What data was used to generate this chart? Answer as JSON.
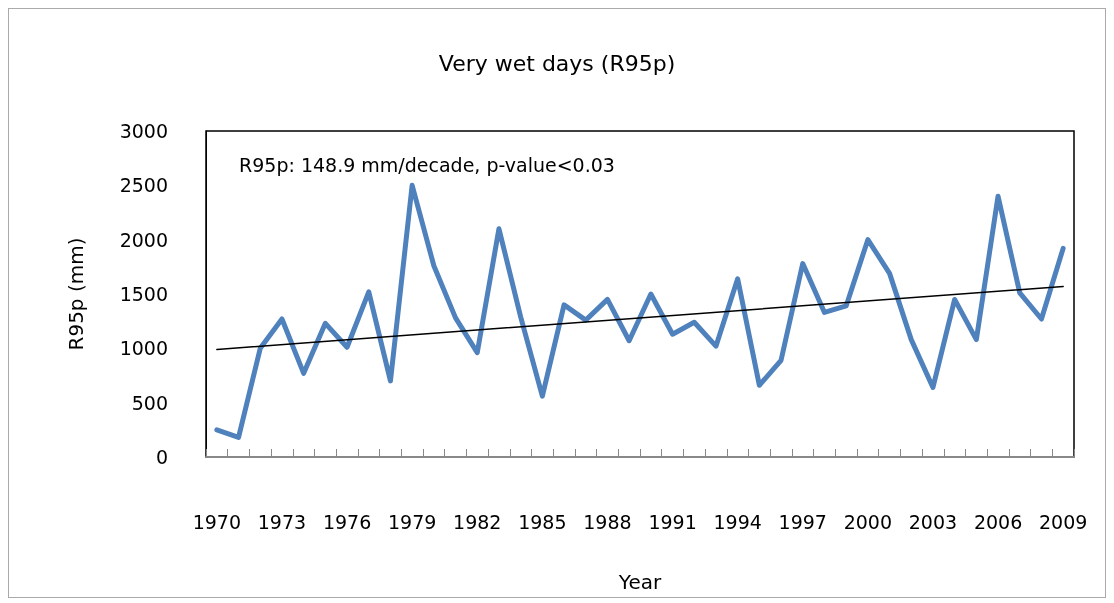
{
  "chart_data": {
    "type": "line",
    "title": "Very wet days (R95p)",
    "xlabel": "Year",
    "ylabel": "R95p (mm)",
    "categories": [
      "1970",
      null,
      null,
      "1973",
      null,
      null,
      "1976",
      null,
      null,
      "1979",
      null,
      null,
      "1982",
      null,
      null,
      "1985",
      null,
      null,
      "1988",
      null,
      null,
      "1991",
      null,
      null,
      "1994",
      null,
      null,
      "1997",
      null,
      null,
      "2000",
      null,
      null,
      "2003",
      null,
      null,
      "2006",
      null,
      null,
      "2009"
    ],
    "series": [
      {
        "color": "#4f81bd",
        "values": [
          250,
          180,
          1000,
          1270,
          770,
          1230,
          1010,
          1520,
          700,
          2500,
          1760,
          1280,
          960,
          2100,
          1290,
          560,
          1400,
          1260,
          1450,
          1070,
          1500,
          1130,
          1240,
          1020,
          1640,
          660,
          890,
          1780,
          1330,
          1390,
          2000,
          1690,
          1080,
          640,
          1450,
          1080,
          2400,
          1510,
          1270,
          1920
        ]
      },
      {
        "type": "line",
        "color": "#000000",
        "values": [
          990,
          null,
          null,
          null,
          null,
          null,
          null,
          null,
          null,
          null,
          null,
          null,
          null,
          null,
          null,
          null,
          null,
          null,
          null,
          null,
          null,
          null,
          null,
          null,
          null,
          null,
          null,
          null,
          null,
          null,
          null,
          null,
          null,
          null,
          null,
          null,
          null,
          null,
          null,
          1570
        ]
      }
    ],
    "annotations": [
      "R95p: 148.9 mm/decade, p-value<0.03"
    ],
    "ylim": [
      0,
      3000
    ],
    "yticks": [
      0,
      500,
      1000,
      1500,
      2000,
      2500,
      3000
    ],
    "grid": false,
    "marker": "none",
    "line_style": "solid"
  }
}
